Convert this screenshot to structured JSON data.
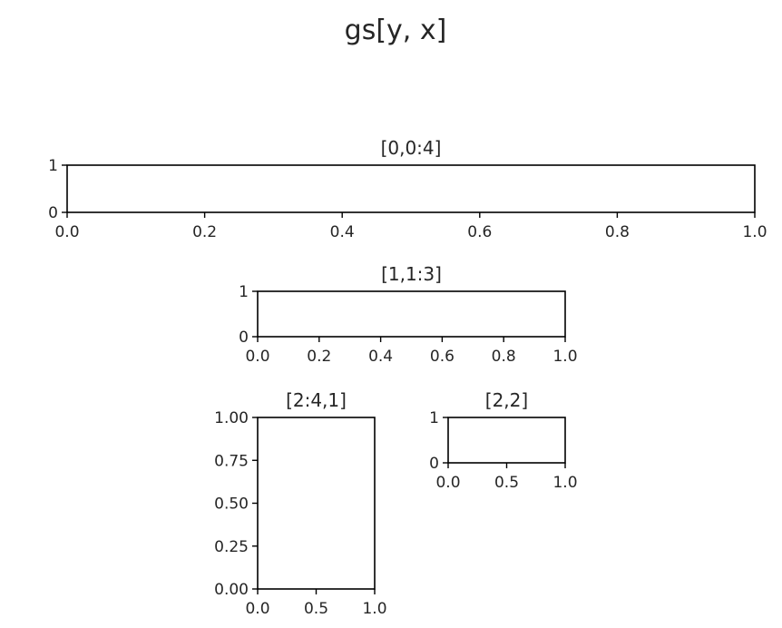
{
  "figure": {
    "suptitle": "gs[y, x]"
  },
  "chart_data": [
    {
      "type": "line",
      "title": "[0,0:4]",
      "series": [],
      "xlim": [
        0.0,
        1.0
      ],
      "ylim": [
        0,
        1
      ],
      "xticks": [
        0.0,
        0.2,
        0.4,
        0.6,
        0.8,
        1.0
      ],
      "xtick_labels": [
        "0.0",
        "0.2",
        "0.4",
        "0.6",
        "0.8",
        "1.0"
      ],
      "yticks": [
        0,
        1
      ],
      "ytick_labels": [
        "0",
        "1"
      ],
      "grid": false
    },
    {
      "type": "line",
      "title": "[1,1:3]",
      "series": [],
      "xlim": [
        0.0,
        1.0
      ],
      "ylim": [
        0,
        1
      ],
      "xticks": [
        0.0,
        0.2,
        0.4,
        0.6,
        0.8,
        1.0
      ],
      "xtick_labels": [
        "0.0",
        "0.2",
        "0.4",
        "0.6",
        "0.8",
        "1.0"
      ],
      "yticks": [
        0,
        1
      ],
      "ytick_labels": [
        "0",
        "1"
      ],
      "grid": false
    },
    {
      "type": "line",
      "title": "[2:4,1]",
      "series": [],
      "xlim": [
        0.0,
        1.0
      ],
      "ylim": [
        0.0,
        1.0
      ],
      "xticks": [
        0.0,
        0.5,
        1.0
      ],
      "xtick_labels": [
        "0.0",
        "0.5",
        "1.0"
      ],
      "yticks": [
        0.0,
        0.25,
        0.5,
        0.75,
        1.0
      ],
      "ytick_labels": [
        "0.00",
        "0.25",
        "0.50",
        "0.75",
        "1.00"
      ],
      "grid": false
    },
    {
      "type": "line",
      "title": "[2,2]",
      "series": [],
      "xlim": [
        0.0,
        1.0
      ],
      "ylim": [
        0,
        1
      ],
      "xticks": [
        0.0,
        0.5,
        1.0
      ],
      "xtick_labels": [
        "0.0",
        "0.5",
        "1.0"
      ],
      "yticks": [
        0,
        1
      ],
      "ytick_labels": [
        "0",
        "1"
      ],
      "grid": false
    }
  ]
}
